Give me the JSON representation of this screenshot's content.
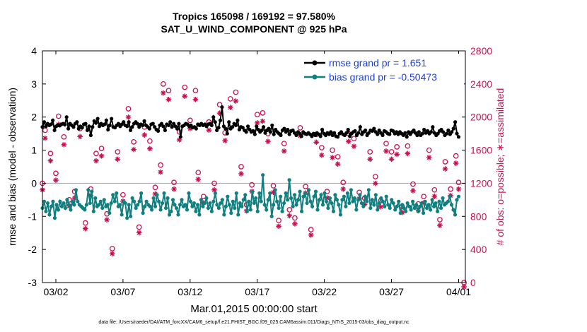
{
  "chart_data": {
    "type": "line",
    "title_line1": "Tropics 165098 / 169192 = 97.580%",
    "title_line2": "SAT_U_WIND_COMPONENT @ 925 hPa",
    "ylabel_left": "rmse and bias (model - observation)",
    "ylabel_right": "# of obs: o=possible; ∗=assimilated",
    "xlabel": "Mar.01,2015 00:00:00 start",
    "footer": "data file: /Users/raeder/DAI/ATM_forcXX/CAM6_setup/f.e21.FHIST_BGC.f09_025.CAM6assim.011/Diags_NTrS_2015-03/obs_diag_output.nc",
    "ylim_left": [
      -3,
      4
    ],
    "ylim_right": [
      0,
      2800
    ],
    "xlim_days": [
      0,
      31.5
    ],
    "left_ticks": [
      "-3",
      "-2",
      "-1",
      "0",
      "1",
      "2",
      "3",
      "4"
    ],
    "right_ticks": [
      "0",
      "400",
      "800",
      "1200",
      "1600",
      "2000",
      "2400",
      "2800"
    ],
    "x_ticks": [
      {
        "day": 1,
        "label": "03/02"
      },
      {
        "day": 6,
        "label": "03/07"
      },
      {
        "day": 11,
        "label": "03/12"
      },
      {
        "day": 16,
        "label": "03/17"
      },
      {
        "day": 21,
        "label": "03/22"
      },
      {
        "day": 26,
        "label": "03/27"
      },
      {
        "day": 31,
        "label": "04/01"
      }
    ],
    "legend": {
      "rmse_label": "rmse grand pr = 1.651",
      "bias_label": "bias grand pr = -0.50473",
      "position": "top-right"
    },
    "colors": {
      "rmse": "#000000",
      "bias": "#0f7f7f",
      "obs": "#c8104e",
      "zero_line": "#c8a0a0",
      "axis": "#000000"
    },
    "series": [
      {
        "name": "rmse",
        "values": [
          1.7,
          1.85,
          1.72,
          1.8,
          1.75,
          1.78,
          1.9,
          1.6,
          1.72,
          1.76,
          1.74,
          1.78,
          1.8,
          1.77,
          2.0,
          1.65,
          1.8,
          1.75,
          1.7,
          1.8,
          1.85,
          1.65,
          1.72,
          1.68,
          1.78,
          1.8,
          1.6,
          1.72,
          1.45,
          1.7,
          1.88,
          1.82,
          1.95,
          1.72,
          1.8,
          1.75,
          1.78,
          1.9,
          1.62,
          1.75,
          1.95,
          1.7,
          1.68,
          1.75,
          1.8,
          1.72,
          1.78,
          1.85,
          1.75,
          1.72,
          1.85,
          1.6,
          1.7,
          1.8,
          1.85,
          1.8,
          1.7,
          1.78,
          1.75,
          1.88,
          1.75,
          1.7,
          1.65,
          1.78,
          1.8,
          1.7,
          1.62,
          1.58,
          1.75,
          1.8,
          1.72,
          1.6,
          1.78,
          1.75,
          1.85,
          1.7,
          1.8,
          1.72,
          1.65,
          1.8,
          1.4,
          1.72,
          1.75,
          1.8,
          1.78,
          1.72,
          1.75,
          1.68,
          1.7,
          1.65,
          1.78,
          1.75,
          1.8,
          1.75,
          1.78,
          1.72,
          1.78,
          1.8,
          1.75,
          2.0,
          1.85,
          1.6,
          1.68,
          1.9,
          2.3,
          1.72,
          1.65,
          1.5,
          1.85,
          1.65,
          1.7,
          1.8,
          1.75,
          1.9,
          1.62,
          1.7,
          1.68,
          1.6,
          1.55,
          1.72,
          1.62,
          1.55,
          1.58,
          1.48,
          1.72,
          1.62,
          1.55,
          1.6,
          1.7,
          1.52,
          1.6,
          1.65,
          1.55,
          1.75,
          1.48,
          1.62,
          1.55,
          1.5,
          1.45,
          1.6,
          1.65,
          1.55,
          1.62,
          1.48,
          1.58,
          1.6,
          1.52,
          1.45,
          1.55,
          1.5,
          1.42,
          1.55,
          1.5,
          1.48,
          1.52,
          1.48,
          1.42,
          1.5,
          1.45,
          1.52,
          1.48,
          1.42,
          1.62,
          1.5,
          1.45,
          1.52,
          1.48,
          1.55,
          1.45,
          1.52,
          1.42,
          1.4,
          1.5,
          1.55,
          1.48,
          1.45,
          1.52,
          1.62,
          1.42,
          1.5,
          1.55,
          1.58,
          1.45,
          1.52,
          1.7,
          1.48,
          1.55,
          1.6,
          1.45,
          1.52,
          1.6,
          1.58,
          1.65,
          1.55,
          1.48,
          1.6,
          1.52,
          1.45,
          1.58,
          1.55,
          1.5,
          1.48,
          1.6,
          1.58,
          1.5,
          1.55,
          1.48,
          1.55,
          1.5,
          1.45,
          1.52,
          1.4,
          1.55,
          1.48,
          1.55,
          1.6,
          1.52,
          1.45,
          1.55,
          1.45,
          1.5,
          1.62,
          1.52,
          1.58,
          1.5,
          1.55,
          1.7,
          1.52,
          1.45,
          1.5,
          1.58,
          1.62,
          1.55,
          1.45,
          1.5,
          1.6,
          1.48,
          1.55,
          1.65,
          1.85,
          1.5,
          1.4
        ]
      },
      {
        "name": "bias",
        "values": [
          -0.75,
          -0.55,
          -0.85,
          -0.6,
          -0.95,
          -0.7,
          -0.55,
          -1.05,
          -0.65,
          -0.8,
          -0.55,
          -0.7,
          -0.6,
          -0.75,
          -0.5,
          -0.65,
          -0.8,
          -0.55,
          -0.65,
          -0.2,
          -0.55,
          -0.65,
          -0.7,
          -0.75,
          -0.8,
          -0.65,
          -0.2,
          -0.6,
          -0.25,
          -0.85,
          -0.45,
          -0.7,
          -0.65,
          -0.55,
          -0.75,
          -0.5,
          -0.7,
          -0.65,
          -0.9,
          -0.6,
          -0.35,
          -0.55,
          -0.3,
          -0.7,
          -0.65,
          -0.95,
          -0.55,
          -0.6,
          -1.05,
          -0.65,
          -1.0,
          -0.45,
          -0.55,
          -0.75,
          -0.65,
          -0.55,
          -0.3,
          -0.9,
          -0.7,
          -0.55,
          -0.65,
          -0.7,
          -0.8,
          -0.45,
          -0.7,
          -0.35,
          -0.55,
          -0.8,
          -0.6,
          -0.3,
          -0.75,
          -0.45,
          -0.95,
          -0.85,
          -0.5,
          -0.65,
          -0.75,
          -0.95,
          -0.65,
          -0.5,
          -0.7,
          -0.65,
          -0.8,
          -0.3,
          -0.55,
          -0.7,
          -0.6,
          -0.85,
          -0.65,
          -0.95,
          -0.5,
          -0.7,
          -0.6,
          -0.45,
          -0.75,
          -0.6,
          -0.85,
          -0.55,
          -0.3,
          -0.65,
          -0.75,
          -0.6,
          -0.5,
          -0.95,
          -0.7,
          -0.4,
          -0.65,
          -0.9,
          -0.55,
          -0.75,
          -0.3,
          -0.95,
          -0.6,
          -0.7,
          -0.5,
          -0.35,
          -0.85,
          -0.55,
          -0.8,
          -0.25,
          -0.6,
          -0.45,
          -0.85,
          -0.3,
          -0.55,
          0.25,
          -0.65,
          -0.8,
          -0.5,
          -0.3,
          -1.0,
          -0.65,
          -0.2,
          -0.55,
          -0.75,
          -0.4,
          -0.85,
          -0.6,
          -0.3,
          -0.5,
          0.1,
          -0.45,
          -0.7,
          -0.35,
          -0.65,
          -0.5,
          -0.25,
          -0.85,
          -0.4,
          -0.3,
          -0.6,
          -0.2,
          -0.55,
          -0.7,
          -0.4,
          -0.25,
          -0.8,
          -0.5,
          -0.35,
          -0.65,
          -0.3,
          -0.55,
          -0.75,
          -0.45,
          -0.6,
          -0.85,
          -0.35,
          -0.5,
          -0.65,
          -0.95,
          -0.5,
          -0.4,
          -0.7,
          -0.3,
          -0.6,
          -0.2,
          -0.55,
          -0.45,
          -0.8,
          -0.5,
          -0.35,
          -0.6,
          -0.7,
          -0.4,
          -0.55,
          -0.2,
          -0.75,
          -0.5,
          -0.65,
          -0.35,
          -0.8,
          -0.6,
          -0.45,
          -0.55,
          -0.7,
          -0.4,
          -0.65,
          -0.75,
          -0.5,
          -0.6,
          -0.8,
          -0.7,
          -0.55,
          -0.9,
          -0.65,
          -0.75,
          -0.85,
          -0.6,
          -0.7,
          -0.8,
          -0.55,
          -0.75,
          -0.65,
          -0.85,
          -0.7,
          -0.6,
          -0.9,
          -0.55,
          -0.75,
          -0.65,
          -0.8,
          -0.5,
          -0.7,
          -0.6,
          -0.85,
          -0.55,
          -0.75,
          -0.45,
          -0.65,
          -0.6,
          -0.55,
          -0.4,
          -0.65,
          -0.8,
          -0.95,
          -0.5,
          -0.4
        ]
      },
      {
        "name": "obs_possible",
        "points": [
          [
            0.0,
            1200
          ],
          [
            0.2,
            1840
          ],
          [
            0.6,
            1560
          ],
          [
            1.0,
            1320
          ],
          [
            1.2,
            2010
          ],
          [
            1.6,
            1760
          ],
          [
            2.0,
            1000
          ],
          [
            2.4,
            1100
          ],
          [
            2.8,
            1860
          ],
          [
            3.2,
            720
          ],
          [
            3.6,
            1130
          ],
          [
            4.0,
            1560
          ],
          [
            4.4,
            1620
          ],
          [
            4.8,
            830
          ],
          [
            5.2,
            410
          ],
          [
            5.6,
            1580
          ],
          [
            6.0,
            1060
          ],
          [
            6.4,
            2100
          ],
          [
            6.8,
            1700
          ],
          [
            7.2,
            670
          ],
          [
            7.6,
            1880
          ],
          [
            8.0,
            1710
          ],
          [
            8.4,
            1150
          ],
          [
            8.8,
            1420
          ],
          [
            9.0,
            2400
          ],
          [
            9.4,
            2320
          ],
          [
            9.8,
            1210
          ],
          [
            10.2,
            1820
          ],
          [
            10.6,
            2360
          ],
          [
            11.0,
            1960
          ],
          [
            11.4,
            2320
          ],
          [
            11.6,
            1330
          ],
          [
            12.0,
            1040
          ],
          [
            12.4,
            1940
          ],
          [
            12.8,
            1200
          ],
          [
            13.2,
            2150
          ],
          [
            13.6,
            1810
          ],
          [
            14.0,
            2220
          ],
          [
            14.4,
            2300
          ],
          [
            14.8,
            1400
          ],
          [
            15.2,
            940
          ],
          [
            15.6,
            1180
          ],
          [
            16.0,
            2030
          ],
          [
            16.4,
            2050
          ],
          [
            16.8,
            1800
          ],
          [
            17.2,
            1170
          ],
          [
            17.6,
            750
          ],
          [
            18.0,
            1680
          ],
          [
            18.4,
            880
          ],
          [
            18.8,
            780
          ],
          [
            19.2,
            1870
          ],
          [
            19.6,
            1160
          ],
          [
            20.0,
            640
          ],
          [
            20.4,
            1790
          ],
          [
            20.8,
            1630
          ],
          [
            21.2,
            1100
          ],
          [
            21.6,
            1600
          ],
          [
            22.0,
            1520
          ],
          [
            22.4,
            1210
          ],
          [
            22.8,
            1800
          ],
          [
            23.2,
            1740
          ],
          [
            23.6,
            1090
          ],
          [
            24.0,
            1020
          ],
          [
            24.4,
            1580
          ],
          [
            24.8,
            1280
          ],
          [
            25.2,
            990
          ],
          [
            25.6,
            1680
          ],
          [
            26.0,
            1580
          ],
          [
            26.4,
            1640
          ],
          [
            26.8,
            920
          ],
          [
            27.2,
            1650
          ],
          [
            27.6,
            1190
          ],
          [
            28.0,
            950
          ],
          [
            28.4,
            1040
          ],
          [
            28.8,
            1600
          ],
          [
            29.2,
            1120
          ],
          [
            29.6,
            760
          ],
          [
            30.0,
            1460
          ],
          [
            30.4,
            1130
          ],
          [
            30.8,
            1530
          ],
          [
            31.0,
            1210
          ],
          [
            31.4,
            0
          ]
        ]
      }
    ]
  }
}
